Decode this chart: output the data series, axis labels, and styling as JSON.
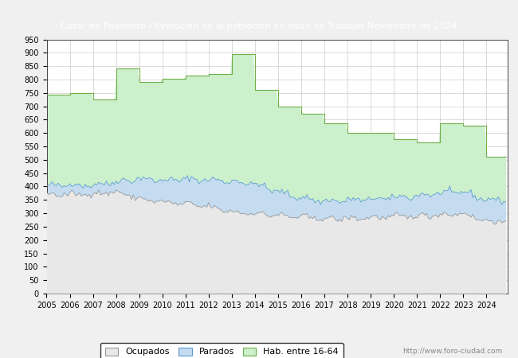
{
  "title": "Casar de Palomero - Evolucion de la poblacion en edad de Trabajar Noviembre de 2024",
  "title_bg": "#4a7cc7",
  "title_color": "#ffffff",
  "ylim": [
    0,
    950
  ],
  "yticks": [
    0,
    50,
    100,
    150,
    200,
    250,
    300,
    350,
    400,
    450,
    500,
    550,
    600,
    650,
    700,
    750,
    800,
    850,
    900,
    950
  ],
  "hab_16_64": [
    742,
    750,
    726,
    840,
    792,
    804,
    816,
    822,
    895,
    760,
    700,
    671,
    635,
    600,
    600,
    577,
    565,
    635,
    627,
    510
  ],
  "parados_annual": [
    400,
    408,
    405,
    418,
    430,
    422,
    428,
    425,
    420,
    410,
    380,
    358,
    345,
    348,
    352,
    358,
    365,
    375,
    380,
    350
  ],
  "ocupados_annual": [
    370,
    370,
    373,
    380,
    355,
    342,
    335,
    325,
    305,
    300,
    292,
    286,
    280,
    280,
    284,
    287,
    290,
    295,
    300,
    270
  ],
  "watermark": "http://www.foro-ciudad.com",
  "legend_labels": [
    "Ocupados",
    "Parados",
    "Hab. entre 16-64"
  ],
  "fill_hab_color": "#ccf0cc",
  "fill_hab_edge": "#70ad47",
  "fill_parados_color": "#c5dcf0",
  "fill_parados_edge": "#5b9bd5",
  "fill_ocupados_color": "#e8e8e8",
  "fill_ocupados_edge": "#999999",
  "legend_colors": [
    "#e8e8e8",
    "#c5dcf0",
    "#ccf0cc"
  ],
  "legend_edge_colors": [
    "#999999",
    "#5b9bd5",
    "#70ad47"
  ],
  "grid_color": "#cccccc",
  "seed": 42
}
